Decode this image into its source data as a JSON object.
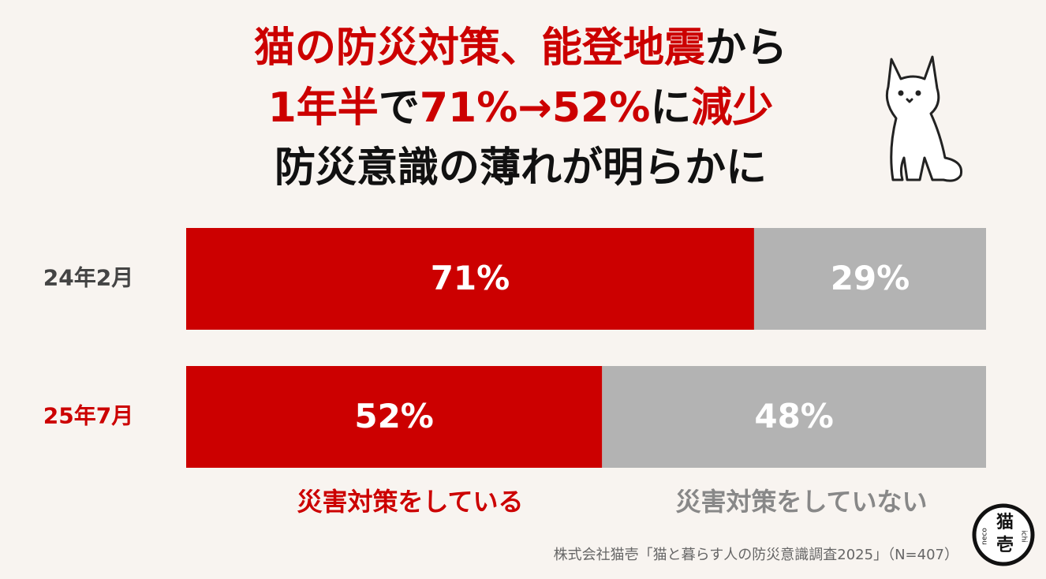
{
  "chart_data": {
    "type": "stacked_bar_100",
    "title_lines": [
      [
        {
          "text": "猫の防災対策、能登地震",
          "color": "#cc0000"
        },
        {
          "text": "から",
          "color": "#111111"
        }
      ],
      [
        {
          "text": "1年半",
          "color": "#cc0000"
        },
        {
          "text": "で",
          "color": "#111111"
        },
        {
          "text": "71%→52%",
          "color": "#cc0000"
        },
        {
          "text": "に",
          "color": "#111111"
        },
        {
          "text": "減少",
          "color": "#cc0000"
        }
      ],
      [
        {
          "text": "防災意識の薄れが明らかに",
          "color": "#111111"
        }
      ]
    ],
    "categories": [
      "24年2月",
      "25年7月"
    ],
    "category_colors": [
      "#444444",
      "#cc0000"
    ],
    "xlim": [
      0,
      100
    ],
    "series": [
      {
        "name": "災害対策をしている",
        "color": "#cc0000",
        "values": [
          71,
          52
        ],
        "value_labels": [
          "71%",
          "52%"
        ]
      },
      {
        "name": "災害対策をしていない",
        "color": "#b3b3b3",
        "values": [
          29,
          48
        ],
        "value_labels": [
          "29%",
          "48%"
        ]
      }
    ],
    "source": "株式会社猫壱「猫と暮らす人の防災意識調査2025」（N=407）",
    "logo": {
      "main": "猫",
      "sub": "壱",
      "left": "neco",
      "right": "ichi"
    }
  }
}
